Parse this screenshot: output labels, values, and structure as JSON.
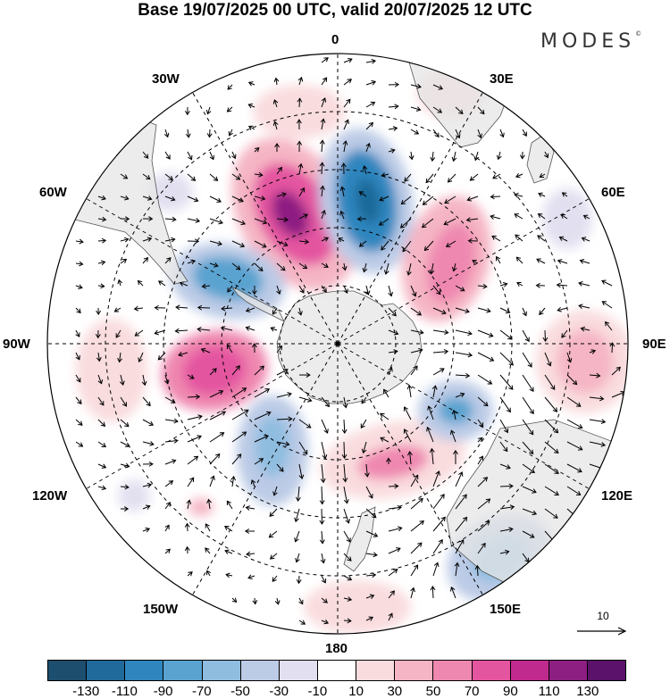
{
  "title": "Base 19/07/2025 00 UTC, valid 20/07/2025 12 UTC",
  "brand": "MODES",
  "brand_mark": "©",
  "longitude_labels": [
    "0",
    "30E",
    "60E",
    "90E",
    "120E",
    "150E",
    "180",
    "150W",
    "120W",
    "90W",
    "60W",
    "30W"
  ],
  "vector_reference_label": "10",
  "colorbar": {
    "colors": [
      "#1d4e6e",
      "#1f6a9a",
      "#2f86bf",
      "#5aa3d0",
      "#8fbde0",
      "#bccbe6",
      "#e2e0f0",
      "#ffffff",
      "#f9dcde",
      "#f5b5c4",
      "#ef88b0",
      "#e455a0",
      "#c02a8e",
      "#8d1e82",
      "#5a126a"
    ],
    "tick_labels": [
      "-130",
      "-110",
      "-90",
      "-70",
      "-50",
      "-30",
      "-10",
      "10",
      "30",
      "50",
      "70",
      "90",
      "110",
      "130"
    ]
  },
  "colors": {
    "land": "#e6e6e6",
    "coast": "#555555"
  }
}
